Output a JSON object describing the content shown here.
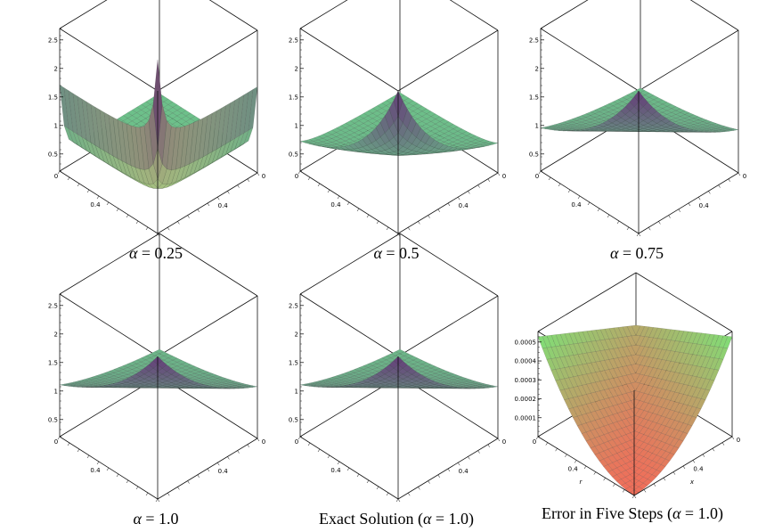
{
  "figure": {
    "panels": [
      {
        "id": "p1",
        "prefix": "α",
        "middle": " = 0.25",
        "suffix": "",
        "surface": "alpha025",
        "z_ticks": [
          "0.5",
          "1",
          "1.5",
          "2",
          "2.5"
        ],
        "x_ticks": [
          "0",
          "0.4"
        ],
        "y_ticks": [
          "0.4",
          "0"
        ]
      },
      {
        "id": "p2",
        "prefix": "α",
        "middle": " = 0.5",
        "suffix": "",
        "surface": "alpha05",
        "z_ticks": [
          "0.5",
          "1",
          "1.5",
          "2",
          "2.5"
        ],
        "x_ticks": [
          "0",
          "0.4"
        ],
        "y_ticks": [
          "0.4",
          "0"
        ]
      },
      {
        "id": "p3",
        "prefix": "α",
        "middle": " = 0.75",
        "suffix": "",
        "surface": "alpha075",
        "z_ticks": [
          "0.5",
          "1",
          "1.5",
          "2",
          "2.5"
        ],
        "x_ticks": [
          "0",
          "0.4"
        ],
        "y_ticks": [
          "0.4",
          "0"
        ]
      },
      {
        "id": "p4",
        "prefix": "α",
        "middle": " = 1.0",
        "suffix": "",
        "surface": "alpha1",
        "z_ticks": [
          "0.5",
          "1",
          "1.5",
          "2",
          "2.5"
        ],
        "x_ticks": [
          "0",
          "0.4"
        ],
        "y_ticks": [
          "0.4",
          "0"
        ]
      },
      {
        "id": "p5",
        "prefix": "Exact Solution (",
        "middle": "α",
        "suffix": " = 1.0)",
        "surface": "exact",
        "z_ticks": [
          "0.5",
          "1",
          "1.5",
          "2",
          "2.5"
        ],
        "x_ticks": [
          "0",
          "0.4"
        ],
        "y_ticks": [
          "0.4",
          "0"
        ]
      },
      {
        "id": "p6",
        "prefix": "Error in Five Steps (",
        "middle": "α",
        "suffix": " = 1.0)",
        "surface": "error",
        "z_ticks": [
          "0.0001",
          "0.0002",
          "0.0003",
          "0.0004",
          "0.0005"
        ],
        "x_ticks": [
          "0",
          "0.4"
        ],
        "y_ticks": [
          "0.4",
          "0"
        ],
        "x_axis_label": "r",
        "y_axis_label": "x"
      }
    ]
  }
}
